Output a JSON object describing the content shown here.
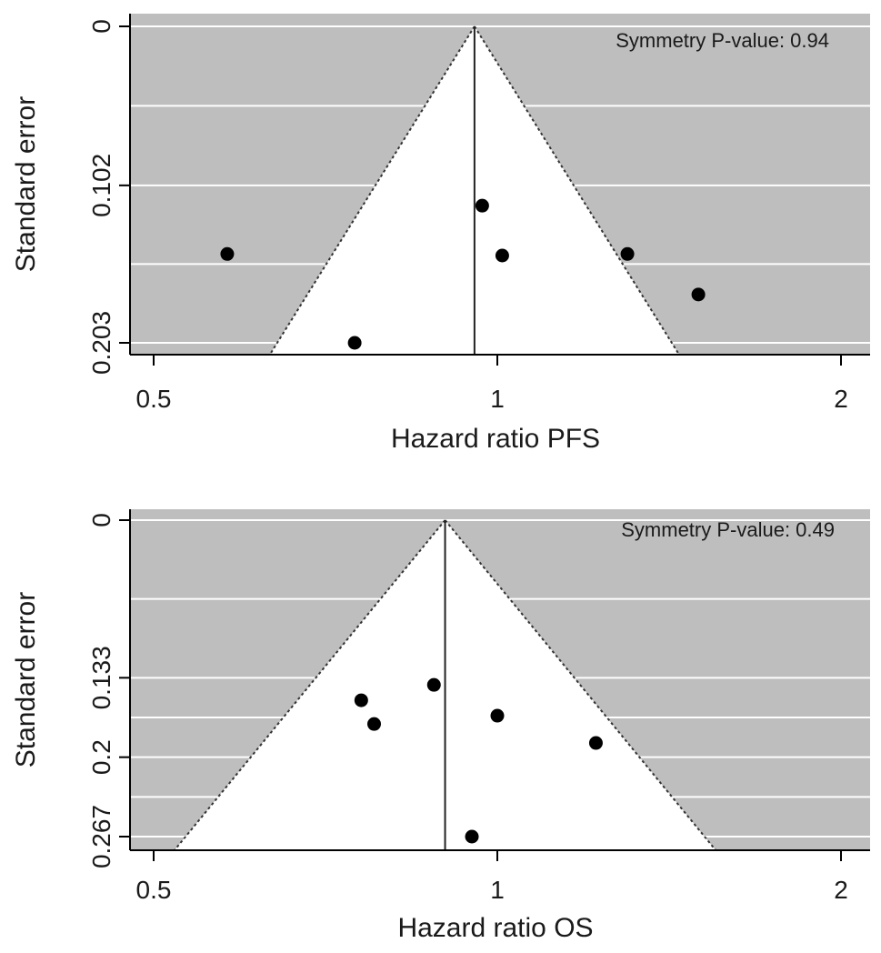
{
  "chart_data": [
    {
      "type": "scatter",
      "subtype": "funnel",
      "xlabel": "Hazard ratio PFS",
      "ylabel": "Standard error",
      "x_scale": "log",
      "x_ticks": [
        0.5,
        1,
        2
      ],
      "x_tick_labels": [
        "0.5",
        "1",
        "2"
      ],
      "xlim": [
        0.45,
        2.1
      ],
      "y_ticks": [
        0,
        0.102,
        0.203
      ],
      "y_tick_labels": [
        "0",
        "0.102",
        "0.203"
      ],
      "y_reversed": true,
      "ylim": [
        0,
        0.203
      ],
      "pooled_estimate": 0.955,
      "annotation": "Symmetry P-value: 0.94",
      "points": [
        {
          "x": 0.58,
          "y": 0.146
        },
        {
          "x": 0.75,
          "y": 0.203
        },
        {
          "x": 0.97,
          "y": 0.115
        },
        {
          "x": 1.01,
          "y": 0.147
        },
        {
          "x": 1.3,
          "y": 0.146
        },
        {
          "x": 1.5,
          "y": 0.172
        }
      ],
      "colors": {
        "background": "#bebebe",
        "funnel": "#ffffff",
        "points": "#000000",
        "grid": "#ffffff"
      }
    },
    {
      "type": "scatter",
      "subtype": "funnel",
      "xlabel": "Hazard ratio OS",
      "ylabel": "Standard error",
      "x_scale": "log",
      "x_ticks": [
        0.5,
        1,
        2
      ],
      "x_tick_labels": [
        "0.5",
        "1",
        "2"
      ],
      "xlim": [
        0.45,
        2.1
      ],
      "y_ticks": [
        0,
        0.133,
        0.2,
        0.267
      ],
      "y_tick_labels": [
        "0",
        "0.133",
        "0.2",
        "0.267"
      ],
      "y_reversed": true,
      "ylim": [
        0,
        0.267
      ],
      "pooled_estimate": 0.9,
      "annotation": "Symmetry P-value: 0.49",
      "points": [
        {
          "x": 0.76,
          "y": 0.152
        },
        {
          "x": 0.78,
          "y": 0.172
        },
        {
          "x": 0.88,
          "y": 0.139
        },
        {
          "x": 1.0,
          "y": 0.165
        },
        {
          "x": 1.22,
          "y": 0.188
        },
        {
          "x": 0.95,
          "y": 0.267
        }
      ],
      "colors": {
        "background": "#bebebe",
        "funnel": "#ffffff",
        "points": "#000000",
        "grid": "#ffffff"
      }
    }
  ]
}
